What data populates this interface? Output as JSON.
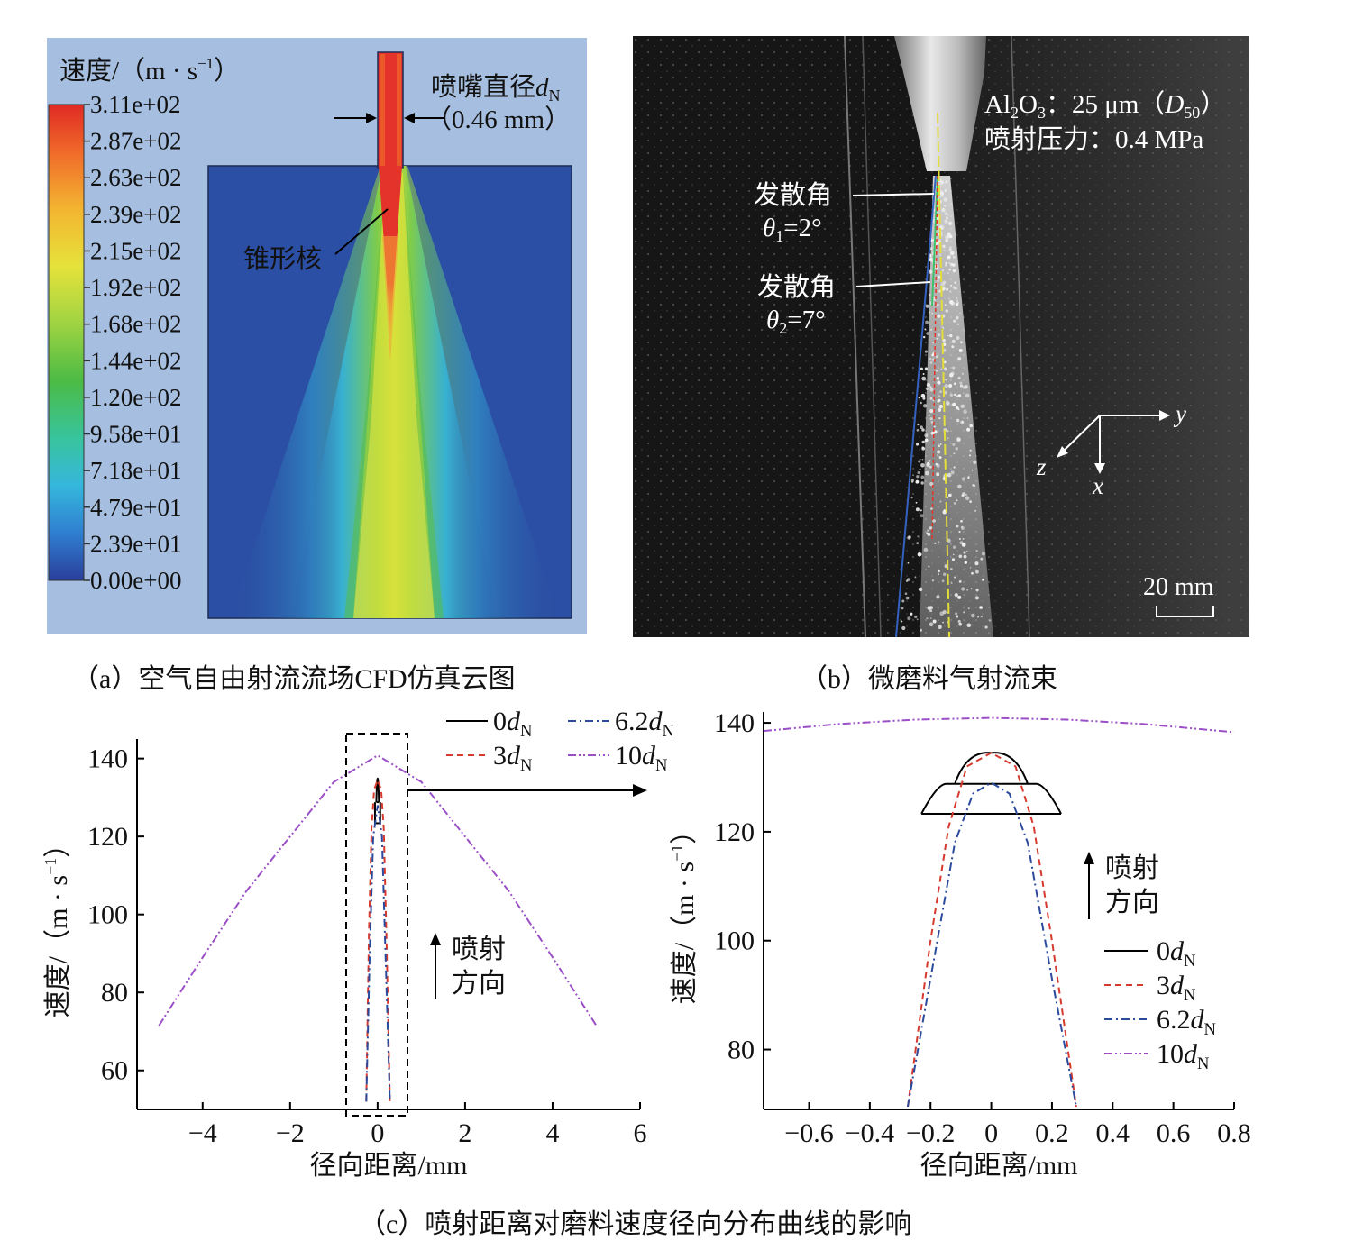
{
  "panel_a": {
    "legend_title": "速度/（m · s",
    "legend_title_sup": "−1",
    "legend_title_end": "）",
    "legend_ticks": [
      "3.11e+02",
      "2.87e+02",
      "2.63e+02",
      "2.39e+02",
      "2.15e+02",
      "1.92e+02",
      "1.68e+02",
      "1.44e+02",
      "1.20e+02",
      "9.58e+01",
      "7.18e+01",
      "4.79e+01",
      "2.39e+01",
      "0.00e+00"
    ],
    "nozzle_label": "喷嘴直径",
    "nozzle_symbol": "d",
    "nozzle_sub": "N",
    "nozzle_value": "（0.46 mm）",
    "cone_label": "锥形核",
    "caption": "（a）空气自由射流流场CFD仿真云图",
    "colors": {
      "background": "#9db8dc",
      "field": "#2a4fa3",
      "core": "#e3332a"
    }
  },
  "panel_b": {
    "material_a": "Al",
    "material_sub1": "2",
    "material_b": "O",
    "material_sub2": "3",
    "material_c": "：25 μm（",
    "material_d": "D",
    "material_sub3": "50",
    "material_e": "）",
    "pressure": "喷射压力：0.4 MPa",
    "angle1_label": "发散角",
    "angle1_symbol": "θ",
    "angle1_sub": "1",
    "angle1_value": "=2°",
    "angle2_label": "发散角",
    "angle2_symbol": "θ",
    "angle2_sub": "2",
    "angle2_value": "=7°",
    "axis_y": "y",
    "axis_z": "z",
    "axis_x": "x",
    "scale_bar": "20 mm",
    "caption": "（b）微磨料气射流束"
  },
  "chart_data": [
    {
      "type": "line",
      "xlabel": "径向距离/mm",
      "ylabel": "速度/（m · s",
      "ylabel_sup": "−1",
      "ylabel_end": "）",
      "xlim": [
        -5.5,
        6
      ],
      "ylim": [
        50,
        145
      ],
      "xticks": [
        -4,
        -2,
        0,
        2,
        4,
        6
      ],
      "xtick_labels": [
        "−4",
        "−2",
        "0",
        "2",
        "4",
        "6"
      ],
      "yticks": [
        60,
        80,
        100,
        120,
        140
      ],
      "ytick_labels": [
        "60",
        "80",
        "100",
        "120",
        "140"
      ],
      "annotation": [
        "喷射",
        "方向"
      ],
      "legend_placement": "top-right",
      "series": [
        {
          "name": "0",
          "name_sub": "N",
          "style": "solid",
          "color": "#000000",
          "points": [
            [
              -0.04,
              123.4
            ],
            [
              0.04,
              123.4
            ],
            [
              -0.03,
              128.8
            ],
            [
              0.03,
              128.8
            ],
            [
              -0.06,
              128.8
            ],
            [
              0.06,
              128.8
            ],
            [
              0,
              134.5
            ]
          ]
        },
        {
          "name": "3",
          "name_sub": "N",
          "style": "dash",
          "color": "#d63a2f",
          "points": [
            [
              -0.26,
              52
            ],
            [
              -0.2,
              95
            ],
            [
              -0.14,
              122
            ],
            [
              -0.08,
              132
            ],
            [
              0,
              134.5
            ],
            [
              0.08,
              132
            ],
            [
              0.14,
              122
            ],
            [
              0.2,
              95
            ],
            [
              0.28,
              52
            ]
          ]
        },
        {
          "name": "6.2",
          "name_sub": "N",
          "style": "dashdot",
          "color": "#2b4a9c",
          "points": [
            [
              -0.26,
              52
            ],
            [
              -0.18,
              90
            ],
            [
              -0.1,
              120
            ],
            [
              0,
              128
            ],
            [
              0.1,
              120
            ],
            [
              0.18,
              90
            ],
            [
              0.28,
              52
            ]
          ]
        },
        {
          "name": "10",
          "name_sub": "N",
          "style": "dashdotdot",
          "color": "#9b4fc6",
          "points": [
            [
              -5,
              71.5
            ],
            [
              -4,
              89
            ],
            [
              -3,
              106
            ],
            [
              -2,
              120
            ],
            [
              -1,
              134
            ],
            [
              0,
              140.8
            ],
            [
              1,
              134
            ],
            [
              2,
              120
            ],
            [
              3,
              106
            ],
            [
              4,
              89
            ],
            [
              5,
              71.5
            ]
          ]
        }
      ]
    },
    {
      "type": "line",
      "xlabel": "径向距离/mm",
      "ylabel": "速度/（m · s",
      "ylabel_sup": "−1",
      "ylabel_end": "）",
      "xlim": [
        -0.75,
        0.8
      ],
      "ylim": [
        69,
        142
      ],
      "xticks": [
        -0.6,
        -0.4,
        -0.2,
        0,
        0.2,
        0.4,
        0.6,
        0.8
      ],
      "xtick_labels": [
        "−0.6",
        "−0.4",
        "−0.2",
        "0",
        "0.2",
        "0.4",
        "0.6",
        "0.8"
      ],
      "yticks": [
        80,
        100,
        120,
        140
      ],
      "ytick_labels": [
        "80",
        "100",
        "120",
        "140"
      ],
      "annotation": [
        "喷射",
        "方向"
      ],
      "legend_placement": "right",
      "series": [
        {
          "name": "0",
          "name_sub": "N",
          "style": "solid",
          "color": "#000000",
          "points": [
            [
              -0.23,
              123.3
            ],
            [
              0.23,
              123.3
            ],
            [
              -0.15,
              128.8
            ],
            [
              0.15,
              128.8
            ],
            [
              -0.12,
              128.8
            ],
            [
              -0.08,
              133
            ],
            [
              0,
              134.5
            ],
            [
              0.08,
              133
            ],
            [
              0.12,
              128.8
            ]
          ]
        },
        {
          "name": "3",
          "name_sub": "N",
          "style": "dash",
          "color": "#d63a2f",
          "points": [
            [
              -0.275,
              69.5
            ],
            [
              -0.2,
              100
            ],
            [
              -0.14,
              121
            ],
            [
              -0.08,
              132
            ],
            [
              0,
              134.5
            ],
            [
              0.08,
              132
            ],
            [
              0.14,
              121
            ],
            [
              0.2,
              100
            ],
            [
              0.28,
              69.5
            ]
          ]
        },
        {
          "name": "6.2",
          "name_sub": "N",
          "style": "dashdot",
          "color": "#2b4a9c",
          "points": [
            [
              -0.275,
              69.5
            ],
            [
              -0.2,
              93
            ],
            [
              -0.12,
              118
            ],
            [
              -0.06,
              127
            ],
            [
              0,
              129
            ],
            [
              0.06,
              127
            ],
            [
              0.12,
              118
            ],
            [
              0.2,
              93
            ],
            [
              0.28,
              69.5
            ]
          ]
        },
        {
          "name": "10",
          "name_sub": "N",
          "style": "dashdotdot",
          "color": "#9b4fc6",
          "points": [
            [
              -0.75,
              138.5
            ],
            [
              -0.5,
              139.8
            ],
            [
              -0.25,
              140.6
            ],
            [
              0,
              140.9
            ],
            [
              0.25,
              140.6
            ],
            [
              0.5,
              139.8
            ],
            [
              0.8,
              138.3
            ]
          ]
        }
      ]
    }
  ],
  "legend_symbol": "d",
  "caption_c": "（c）喷射距离对磨料速度径向分布曲线的影响"
}
